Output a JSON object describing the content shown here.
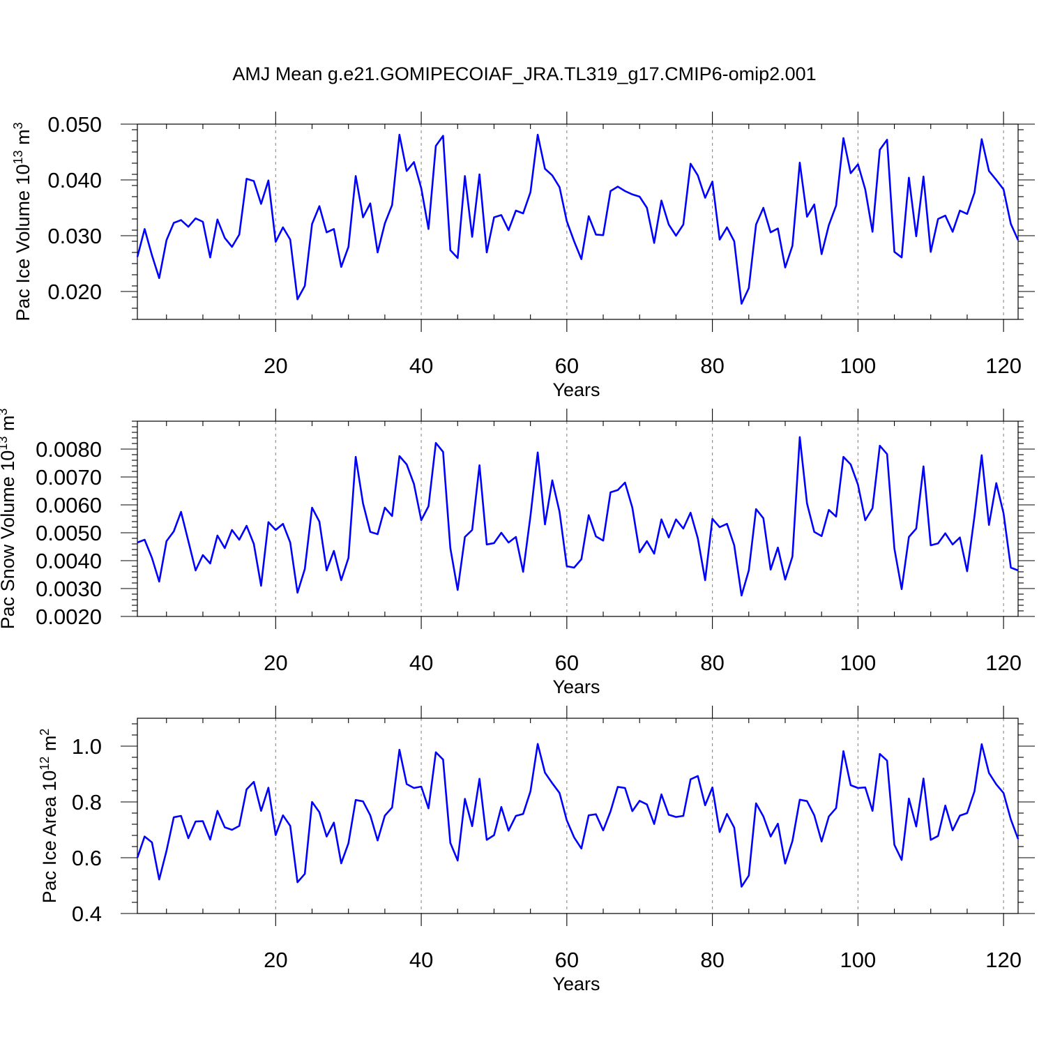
{
  "chart_data": [
    {
      "type": "line",
      "title": "AMJ Mean g.e21.GOMIPECOIAF_JRA.TL319_g17.CMIP6-omip2.001",
      "xlabel": "Years",
      "ylabel": {
        "base": "Pac Ice Volume 10",
        "exp": "13",
        "unit": " m",
        "unit_exp": "3"
      },
      "xlim": [
        1,
        122
      ],
      "ylim": [
        0.015,
        0.05
      ],
      "xticks": [
        {
          "value": 20,
          "label": "20"
        },
        {
          "value": 40,
          "label": "40"
        },
        {
          "value": 60,
          "label": "60"
        },
        {
          "value": 80,
          "label": "80"
        },
        {
          "value": 100,
          "label": "100"
        },
        {
          "value": 120,
          "label": "120"
        }
      ],
      "yticks": [
        {
          "value": 0.02,
          "label": "0.020"
        },
        {
          "value": 0.03,
          "label": "0.030"
        },
        {
          "value": 0.04,
          "label": "0.040"
        },
        {
          "value": 0.05,
          "label": "0.050"
        }
      ],
      "series": [
        {
          "name": "Pac Ice Volume",
          "color": "#0000ff",
          "x_start": 1,
          "values": [
            0.0262,
            0.0312,
            0.0265,
            0.0224,
            0.0292,
            0.0323,
            0.0328,
            0.0316,
            0.0331,
            0.0325,
            0.0261,
            0.0329,
            0.0296,
            0.028,
            0.0302,
            0.0402,
            0.0398,
            0.0357,
            0.0399,
            0.0289,
            0.0315,
            0.0293,
            0.0186,
            0.021,
            0.0321,
            0.0353,
            0.0306,
            0.0312,
            0.0244,
            0.028,
            0.0407,
            0.0333,
            0.0358,
            0.027,
            0.0322,
            0.0355,
            0.0481,
            0.0416,
            0.0432,
            0.0385,
            0.0312,
            0.0461,
            0.0479,
            0.0274,
            0.026,
            0.0407,
            0.0298,
            0.041,
            0.027,
            0.0333,
            0.0337,
            0.031,
            0.0345,
            0.034,
            0.0378,
            0.0481,
            0.042,
            0.0408,
            0.0387,
            0.0326,
            0.029,
            0.0258,
            0.0335,
            0.0302,
            0.0301,
            0.038,
            0.0388,
            0.038,
            0.0374,
            0.037,
            0.035,
            0.0287,
            0.0363,
            0.032,
            0.03,
            0.032,
            0.0429,
            0.0408,
            0.0368,
            0.0397,
            0.0293,
            0.0315,
            0.029,
            0.0178,
            0.0206,
            0.032,
            0.035,
            0.0306,
            0.0313,
            0.0243,
            0.0282,
            0.0431,
            0.0334,
            0.0356,
            0.0267,
            0.0319,
            0.0354,
            0.0475,
            0.0412,
            0.0428,
            0.0383,
            0.0307,
            0.0454,
            0.0472,
            0.0271,
            0.0261,
            0.0404,
            0.0299,
            0.0406,
            0.0271,
            0.033,
            0.0336,
            0.0307,
            0.0345,
            0.0339,
            0.0377,
            0.0473,
            0.0416,
            0.04,
            0.0383,
            0.0321,
            0.0292
          ]
        }
      ]
    },
    {
      "type": "line",
      "xlabel": "Years",
      "ylabel": {
        "base": "Pac Snow Volume 10",
        "exp": "13",
        "unit": " m",
        "unit_exp": "3"
      },
      "xlim": [
        1,
        122
      ],
      "ylim": [
        0.002,
        0.009
      ],
      "xticks": [
        {
          "value": 20,
          "label": "20"
        },
        {
          "value": 40,
          "label": "40"
        },
        {
          "value": 60,
          "label": "60"
        },
        {
          "value": 80,
          "label": "80"
        },
        {
          "value": 100,
          "label": "100"
        },
        {
          "value": 120,
          "label": "120"
        }
      ],
      "yticks": [
        {
          "value": 0.002,
          "label": "0.0020"
        },
        {
          "value": 0.003,
          "label": "0.0030"
        },
        {
          "value": 0.004,
          "label": "0.0040"
        },
        {
          "value": 0.005,
          "label": "0.0050"
        },
        {
          "value": 0.006,
          "label": "0.0060"
        },
        {
          "value": 0.007,
          "label": "0.0070"
        },
        {
          "value": 0.008,
          "label": "0.0080"
        }
      ],
      "series": [
        {
          "name": "Pac Snow Volume",
          "color": "#0000ff",
          "x_start": 1,
          "values": [
            0.00465,
            0.00475,
            0.0041,
            0.00325,
            0.0047,
            0.00505,
            0.00575,
            0.0047,
            0.00365,
            0.0042,
            0.0039,
            0.0049,
            0.00445,
            0.0051,
            0.00475,
            0.00525,
            0.0046,
            0.0031,
            0.00538,
            0.0051,
            0.00532,
            0.00465,
            0.00285,
            0.0037,
            0.0059,
            0.0054,
            0.00365,
            0.00435,
            0.0033,
            0.0041,
            0.00772,
            0.00605,
            0.00503,
            0.00495,
            0.0059,
            0.0056,
            0.00775,
            0.00745,
            0.00675,
            0.00545,
            0.00595,
            0.00822,
            0.0079,
            0.00445,
            0.00295,
            0.00485,
            0.0051,
            0.00742,
            0.00458,
            0.00463,
            0.005,
            0.00465,
            0.00485,
            0.0036,
            0.0056,
            0.00788,
            0.0053,
            0.00688,
            0.00575,
            0.0038,
            0.00375,
            0.00405,
            0.00563,
            0.00487,
            0.00472,
            0.00645,
            0.00653,
            0.0068,
            0.0059,
            0.0043,
            0.0047,
            0.00425,
            0.00548,
            0.00483,
            0.00548,
            0.00515,
            0.00572,
            0.0048,
            0.0033,
            0.0055,
            0.0052,
            0.00532,
            0.00455,
            0.00275,
            0.00365,
            0.00585,
            0.00552,
            0.00368,
            0.00447,
            0.00332,
            0.00415,
            0.00843,
            0.00605,
            0.00503,
            0.00488,
            0.00582,
            0.00558,
            0.00772,
            0.00745,
            0.00672,
            0.00545,
            0.00588,
            0.00812,
            0.00782,
            0.00443,
            0.00298,
            0.00485,
            0.00515,
            0.00738,
            0.00455,
            0.00462,
            0.00498,
            0.00458,
            0.00483,
            0.00362,
            0.00558,
            0.00778,
            0.00528,
            0.00678,
            0.0057,
            0.00375,
            0.00365
          ]
        }
      ]
    },
    {
      "type": "line",
      "xlabel": "Years",
      "ylabel": {
        "base": "Pac Ice Area 10",
        "exp": "12",
        "unit": " m",
        "unit_exp": "2"
      },
      "xlim": [
        1,
        122
      ],
      "ylim": [
        0.4,
        1.1
      ],
      "xticks": [
        {
          "value": 20,
          "label": "20"
        },
        {
          "value": 40,
          "label": "40"
        },
        {
          "value": 60,
          "label": "60"
        },
        {
          "value": 80,
          "label": "80"
        },
        {
          "value": 100,
          "label": "100"
        },
        {
          "value": 120,
          "label": "120"
        }
      ],
      "yticks": [
        {
          "value": 0.4,
          "label": "0.4"
        },
        {
          "value": 0.6,
          "label": "0.6"
        },
        {
          "value": 0.8,
          "label": "0.8"
        },
        {
          "value": 1.0,
          "label": "1.0"
        }
      ],
      "series": [
        {
          "name": "Pac Ice Area",
          "color": "#0000ff",
          "x_start": 1,
          "values": [
            0.6,
            0.676,
            0.655,
            0.522,
            0.625,
            0.745,
            0.75,
            0.67,
            0.73,
            0.731,
            0.665,
            0.768,
            0.709,
            0.7,
            0.714,
            0.845,
            0.872,
            0.768,
            0.851,
            0.681,
            0.752,
            0.714,
            0.512,
            0.542,
            0.8,
            0.763,
            0.676,
            0.726,
            0.58,
            0.652,
            0.807,
            0.802,
            0.752,
            0.662,
            0.751,
            0.78,
            0.987,
            0.864,
            0.85,
            0.855,
            0.777,
            0.978,
            0.952,
            0.653,
            0.59,
            0.811,
            0.713,
            0.883,
            0.664,
            0.681,
            0.782,
            0.697,
            0.75,
            0.757,
            0.838,
            1.008,
            0.905,
            0.867,
            0.832,
            0.734,
            0.673,
            0.633,
            0.752,
            0.756,
            0.698,
            0.766,
            0.854,
            0.85,
            0.767,
            0.804,
            0.791,
            0.721,
            0.827,
            0.754,
            0.746,
            0.75,
            0.881,
            0.893,
            0.788,
            0.852,
            0.692,
            0.757,
            0.708,
            0.496,
            0.536,
            0.795,
            0.748,
            0.676,
            0.722,
            0.579,
            0.66,
            0.808,
            0.803,
            0.752,
            0.658,
            0.748,
            0.778,
            0.982,
            0.86,
            0.85,
            0.852,
            0.768,
            0.972,
            0.948,
            0.646,
            0.592,
            0.812,
            0.712,
            0.884,
            0.664,
            0.678,
            0.787,
            0.698,
            0.751,
            0.76,
            0.838,
            1.007,
            0.904,
            0.863,
            0.832,
            0.737,
            0.667
          ]
        }
      ]
    }
  ]
}
